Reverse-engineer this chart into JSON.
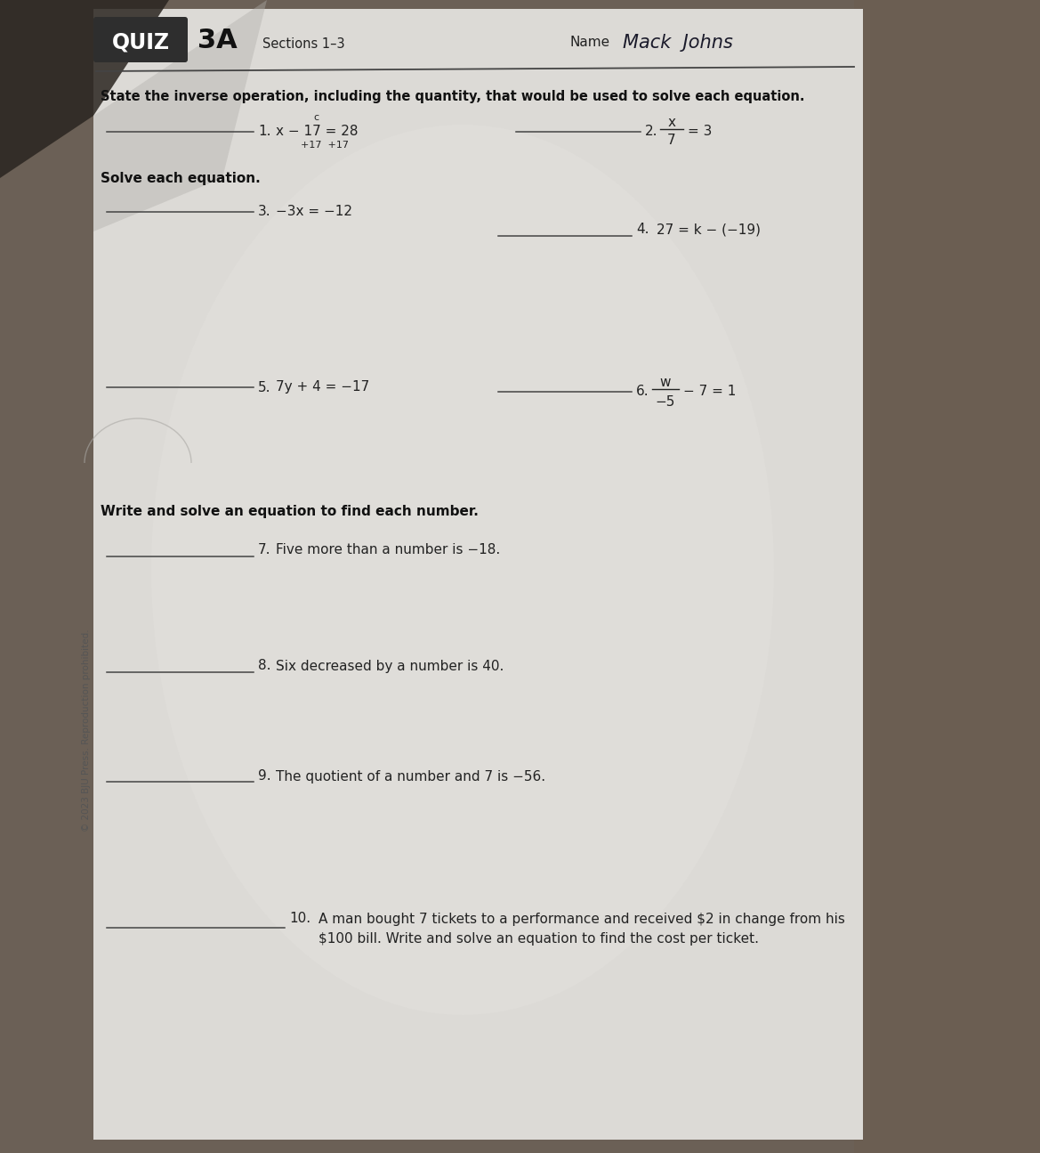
{
  "bg_left_color": "#7a6e62",
  "bg_right_color": "#8a7a6a",
  "paper_color": "#dddbd8",
  "paper_light": "#e8e6e2",
  "quiz_box_color": "#2e2e2e",
  "quiz_box_text": "QUIZ",
  "quiz_3a_text": "3A",
  "sections_text": "Sections 1–3",
  "name_label": "Name",
  "name_value": "Mack  Johns",
  "instruction1": "State the inverse operation, including the quantity, that would be used to solve each equation.",
  "q1_label": "1.",
  "q1_eq": "x − 17 = 28",
  "q2_label": "2.",
  "q2_frac_num": "x",
  "q2_frac_den": "7",
  "q2_eq_rest": "= 3",
  "solve_header": "Solve each equation.",
  "q3_label": "3.",
  "q3_eq": "−3x = −12",
  "q4_label": "4.",
  "q4_eq": "27 = k − (−19)",
  "q5_label": "5.",
  "q5_eq": "7y + 4 = −17",
  "q6_label": "6.",
  "q6_frac_num": "w",
  "q6_frac_den": "−5",
  "q6_eq_rest": "− 7 = 1",
  "write_header": "Write and solve an equation to find each number.",
  "q7_label": "7.",
  "q7_text": "Five more than a number is −18.",
  "q8_label": "8.",
  "q8_text": "Six decreased by a number is 40.",
  "q9_label": "9.",
  "q9_text": "The quotient of a number and 7 is −56.",
  "q10_label": "10.",
  "q10_text_line1": "A man bought 7 tickets to a performance and received $2 in change from his",
  "q10_text_line2": "$100 bill. Write and solve an equation to find the cost per ticket.",
  "copyright": "© 2023 BJU Press. Reproduction prohibited.",
  "text_color": "#222222",
  "line_color": "#444444",
  "bold_color": "#111111",
  "handwrite_color": "#1a1a2a"
}
